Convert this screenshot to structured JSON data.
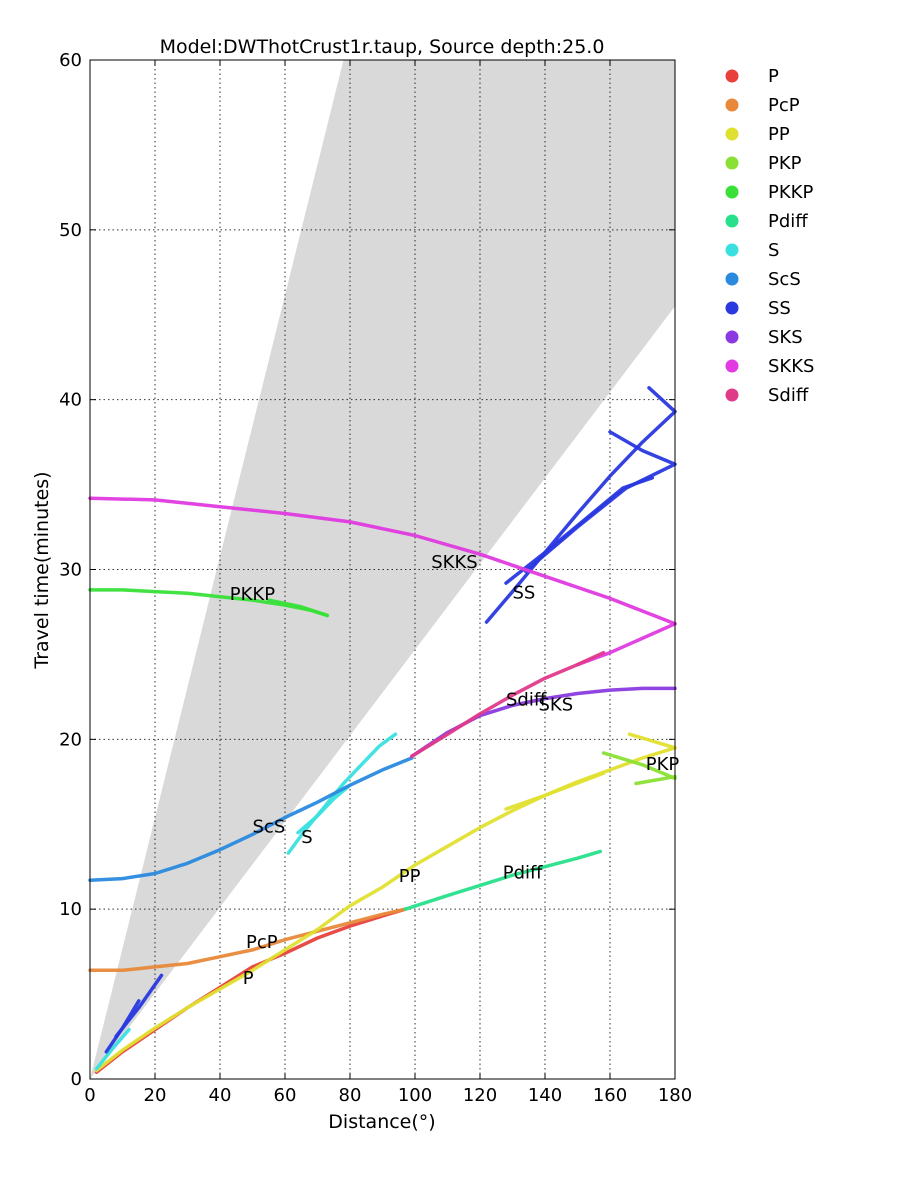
{
  "chart_data": {
    "type": "line",
    "title": "Model:DWThotCrust1r.taup, Source depth:25.0",
    "xlabel": "Distance(°)",
    "ylabel": "Travel time(minutes)",
    "xlim": [
      0,
      180
    ],
    "ylim": [
      0,
      60
    ],
    "xticks": [
      "0",
      "20",
      "40",
      "60",
      "80",
      "100",
      "120",
      "140",
      "160",
      "180"
    ],
    "yticks": [
      "0",
      "10",
      "20",
      "30",
      "40",
      "50",
      "60"
    ],
    "grid": true,
    "legend_position": "outside-right",
    "shaded_region": {
      "polygon": [
        [
          0,
          0
        ],
        [
          78,
          60
        ],
        [
          180,
          60
        ],
        [
          180,
          45.5
        ]
      ],
      "color": "#d9d9d9"
    },
    "series": [
      {
        "name": "P",
        "color": "#e8413c",
        "segments": [
          [
            [
              2,
              0.4
            ],
            [
              10,
              1.6
            ],
            [
              20,
              2.9
            ],
            [
              30,
              4.2
            ],
            [
              40,
              5.4
            ],
            [
              50,
              6.6
            ],
            [
              60,
              7.4
            ],
            [
              70,
              8.3
            ],
            [
              80,
              9.0
            ],
            [
              90,
              9.6
            ],
            [
              97,
              10.0
            ]
          ]
        ]
      },
      {
        "name": "PcP",
        "color": "#e8893a",
        "segments": [
          [
            [
              0,
              6.4
            ],
            [
              10,
              6.4
            ],
            [
              20,
              6.6
            ],
            [
              30,
              6.8
            ],
            [
              40,
              7.2
            ],
            [
              50,
              7.6
            ],
            [
              60,
              8.2
            ],
            [
              70,
              8.7
            ],
            [
              80,
              9.2
            ],
            [
              90,
              9.7
            ],
            [
              97,
              10.0
            ]
          ]
        ]
      },
      {
        "name": "PP",
        "color": "#e0e030",
        "segments": [
          [
            [
              2,
              0.5
            ],
            [
              10,
              1.7
            ],
            [
              20,
              3.0
            ],
            [
              30,
              4.2
            ],
            [
              40,
              5.3
            ],
            [
              50,
              6.4
            ],
            [
              60,
              7.6
            ],
            [
              70,
              8.8
            ],
            [
              80,
              10.2
            ],
            [
              90,
              11.3
            ],
            [
              100,
              12.6
            ],
            [
              110,
              13.7
            ],
            [
              120,
              14.8
            ],
            [
              130,
              15.8
            ],
            [
              140,
              16.7
            ],
            [
              150,
              17.5
            ],
            [
              160,
              18.2
            ],
            [
              170,
              18.9
            ],
            [
              180,
              19.5
            ]
          ],
          [
            [
              166,
              20.3
            ],
            [
              180,
              19.5
            ]
          ],
          [
            [
              128,
              15.9
            ],
            [
              140,
              16.7
            ],
            [
              158,
              18.0
            ]
          ]
        ]
      },
      {
        "name": "PKP",
        "color": "#8ae034",
        "segments": [
          [
            [
              158,
              19.2
            ],
            [
              170,
              18.5
            ],
            [
              180,
              17.7
            ]
          ],
          [
            [
              168,
              17.4
            ],
            [
              180,
              17.8
            ]
          ]
        ]
      },
      {
        "name": "PKKP",
        "color": "#38e038",
        "segments": [
          [
            [
              0,
              28.8
            ],
            [
              10,
              28.8
            ],
            [
              20,
              28.7
            ],
            [
              30,
              28.6
            ],
            [
              40,
              28.4
            ],
            [
              50,
              28.2
            ],
            [
              60,
              27.9
            ],
            [
              68,
              27.6
            ],
            [
              73,
              27.3
            ]
          ],
          [
            [
              55,
              28.2
            ],
            [
              65,
              27.8
            ],
            [
              73,
              27.3
            ]
          ]
        ]
      },
      {
        "name": "Pdiff",
        "color": "#28e08a",
        "segments": [
          [
            [
              97,
              10.0
            ],
            [
              110,
              10.8
            ],
            [
              120,
              11.4
            ],
            [
              130,
              12.0
            ],
            [
              140,
              12.5
            ],
            [
              150,
              13.0
            ],
            [
              157,
              13.4
            ]
          ]
        ]
      },
      {
        "name": "S",
        "color": "#3ae0e0",
        "segments": [
          [
            [
              2,
              0.6
            ],
            [
              7,
              1.8
            ],
            [
              12,
              2.9
            ]
          ],
          [
            [
              61,
              13.3
            ],
            [
              66,
              14.6
            ],
            [
              72,
              16.0
            ],
            [
              78,
              17.4
            ],
            [
              84,
              18.6
            ],
            [
              89,
              19.6
            ],
            [
              94,
              20.3
            ]
          ],
          [
            [
              64,
              14.5
            ],
            [
              70,
              15.5
            ],
            [
              75,
              16.5
            ],
            [
              80,
              17.3
            ]
          ]
        ]
      },
      {
        "name": "ScS",
        "color": "#2a8ae0",
        "segments": [
          [
            [
              0,
              11.7
            ],
            [
              10,
              11.8
            ],
            [
              20,
              12.1
            ],
            [
              30,
              12.7
            ],
            [
              40,
              13.5
            ],
            [
              50,
              14.4
            ],
            [
              60,
              15.4
            ],
            [
              70,
              16.3
            ],
            [
              80,
              17.3
            ],
            [
              90,
              18.2
            ],
            [
              99,
              18.9
            ]
          ]
        ]
      },
      {
        "name": "SS",
        "color": "#2a38e0",
        "segments": [
          [
            [
              5,
              1.6
            ],
            [
              10,
              3.0
            ],
            [
              15,
              4.6
            ]
          ],
          [
            [
              8,
              2.5
            ],
            [
              15,
              4.2
            ],
            [
              22,
              6.1
            ]
          ],
          [
            [
              122,
              26.9
            ],
            [
              130,
              28.7
            ],
            [
              140,
              31.0
            ],
            [
              150,
              33.3
            ],
            [
              160,
              35.5
            ],
            [
              170,
              37.5
            ],
            [
              180,
              39.3
            ],
            [
              172,
              40.7
            ]
          ],
          [
            [
              128,
              29.2
            ],
            [
              140,
              31.0
            ],
            [
              152,
              32.9
            ],
            [
              164,
              34.8
            ],
            [
              173,
              35.4
            ]
          ],
          [
            [
              134,
              29.9
            ],
            [
              150,
              32.5
            ],
            [
              165,
              34.8
            ],
            [
              180,
              36.2
            ],
            [
              170,
              37.0
            ],
            [
              160,
              38.1
            ]
          ]
        ]
      },
      {
        "name": "SKS",
        "color": "#8a3ae0",
        "segments": [
          [
            [
              99,
              19.0
            ],
            [
              110,
              20.4
            ],
            [
              120,
              21.4
            ],
            [
              130,
              22.0
            ],
            [
              140,
              22.4
            ],
            [
              150,
              22.7
            ],
            [
              160,
              22.9
            ],
            [
              170,
              23.0
            ],
            [
              180,
              23.0
            ]
          ]
        ]
      },
      {
        "name": "SKKS",
        "color": "#e03ae0",
        "segments": [
          [
            [
              0,
              34.2
            ],
            [
              20,
              34.1
            ],
            [
              40,
              33.7
            ],
            [
              60,
              33.3
            ],
            [
              80,
              32.8
            ],
            [
              100,
              32.0
            ],
            [
              120,
              30.9
            ],
            [
              140,
              29.6
            ],
            [
              160,
              28.3
            ],
            [
              180,
              26.8
            ]
          ],
          [
            [
              180,
              26.8
            ],
            [
              160,
              25.1
            ],
            [
              150,
              24.4
            ]
          ]
        ]
      },
      {
        "name": "Sdiff",
        "color": "#e03a8a",
        "segments": [
          [
            [
              99,
              19.0
            ],
            [
              110,
              20.3
            ],
            [
              120,
              21.5
            ],
            [
              130,
              22.6
            ],
            [
              140,
              23.6
            ],
            [
              150,
              24.4
            ],
            [
              158,
              25.1
            ]
          ]
        ]
      }
    ],
    "annotations": [
      {
        "text": "P",
        "x": 47,
        "y": 5.6
      },
      {
        "text": "PcP",
        "x": 48,
        "y": 7.7
      },
      {
        "text": "PP",
        "x": 95,
        "y": 11.6
      },
      {
        "text": "Pdiff",
        "x": 127,
        "y": 11.8
      },
      {
        "text": "ScS",
        "x": 50,
        "y": 14.5
      },
      {
        "text": "S",
        "x": 65,
        "y": 13.9
      },
      {
        "text": "PKKP",
        "x": 43,
        "y": 28.2
      },
      {
        "text": "SKKS",
        "x": 105,
        "y": 30.1
      },
      {
        "text": "SS",
        "x": 130,
        "y": 28.3
      },
      {
        "text": "Sdiff",
        "x": 128,
        "y": 22.0
      },
      {
        "text": "SKS",
        "x": 138,
        "y": 21.7
      },
      {
        "text": "PKP",
        "x": 171,
        "y": 18.2
      }
    ]
  }
}
